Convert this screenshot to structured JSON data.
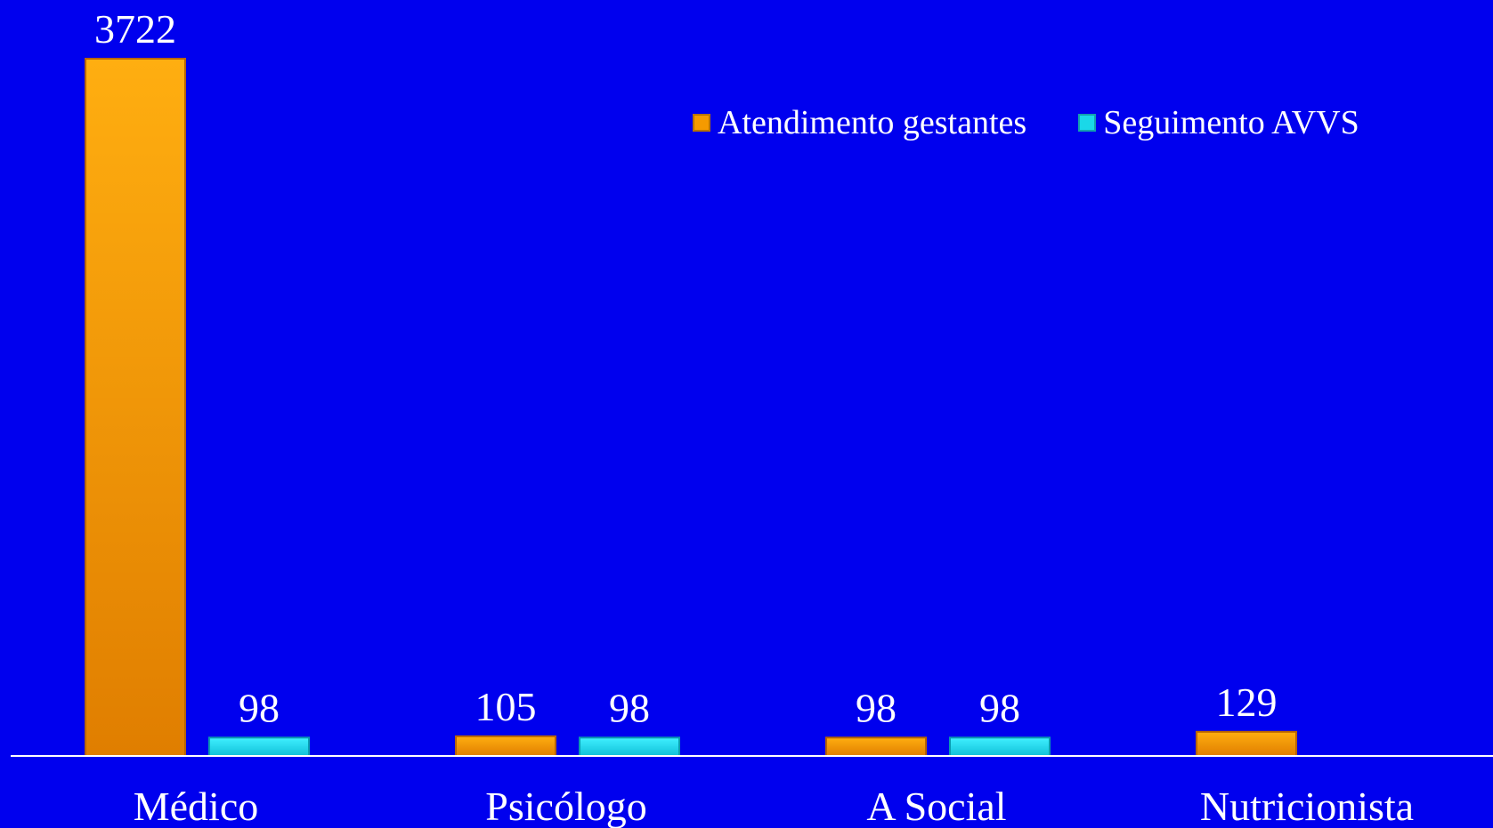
{
  "colors": {
    "background": "#0000ee",
    "series_gestantes": "#f59a00",
    "series_avvs": "#1ad8e8",
    "axis": "#ffffff",
    "text": "#ffffff"
  },
  "legend": {
    "items": [
      {
        "label": "Atendimento gestantes",
        "color": "#f59a00"
      },
      {
        "label": "Seguimento AVVS",
        "color": "#1ad8e8"
      }
    ]
  },
  "chart_data": {
    "type": "bar",
    "categories": [
      "Médico",
      "Psicólogo",
      "A Social",
      "Nutricionista"
    ],
    "series": [
      {
        "name": "Atendimento gestantes",
        "values": [
          3722,
          105,
          98,
          129
        ]
      },
      {
        "name": "Seguimento AVVS",
        "values": [
          98,
          98,
          98,
          null
        ]
      }
    ],
    "data_labels": [
      [
        "3722",
        "105",
        "98",
        "129"
      ],
      [
        "98",
        "98",
        "98",
        ""
      ]
    ],
    "ylim": [
      0,
      3722
    ],
    "grid": false,
    "legend_position": "top-right",
    "bar_style": "3d-beveled"
  }
}
